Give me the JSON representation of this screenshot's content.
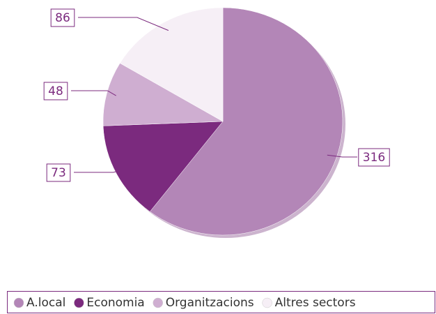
{
  "chart_data": {
    "type": "pie",
    "categories": [
      "A.local",
      "Economia",
      "Organitzacions",
      "Altres sectors"
    ],
    "values": [
      316,
      73,
      48,
      86
    ],
    "colors": [
      "#b386b7",
      "#7b2a7e",
      "#cfaed1",
      "#f6eff6"
    ],
    "legend": "bottom"
  }
}
